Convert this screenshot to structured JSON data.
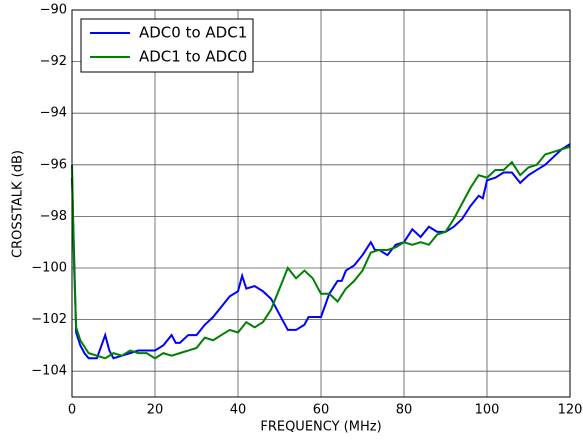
{
  "chart_data": {
    "type": "line",
    "xlabel": "FREQUENCY (MHz)",
    "ylabel": "CROSSTALK (dB)",
    "xlim": [
      0,
      120
    ],
    "xticks": [
      0,
      20,
      40,
      60,
      80,
      100,
      120
    ],
    "ylim": [
      -105,
      -90
    ],
    "yticks": [
      {
        "value": -104,
        "label": "−104"
      },
      {
        "value": -102,
        "label": "−102"
      },
      {
        "value": -100,
        "label": "−100"
      },
      {
        "value": -98,
        "label": "−98"
      },
      {
        "value": -96,
        "label": "−96"
      },
      {
        "value": -94,
        "label": "−94"
      },
      {
        "value": -92,
        "label": "−92"
      },
      {
        "value": -90,
        "label": "−90"
      }
    ],
    "grid": true,
    "legend": "upper left",
    "series": [
      {
        "name": "ADC0 to ADC1",
        "color": "#0000ff",
        "x": [
          0,
          1,
          2,
          3,
          4,
          6,
          8,
          9,
          10,
          12,
          14,
          16,
          18,
          20,
          22,
          24,
          25,
          26,
          28,
          30,
          32,
          34,
          36,
          38,
          40,
          41,
          42,
          44,
          46,
          48,
          50,
          52,
          54,
          56,
          57,
          60,
          62,
          64,
          65,
          66,
          68,
          70,
          72,
          73,
          74,
          76,
          78,
          80,
          82,
          84,
          86,
          88,
          90,
          92,
          94,
          96,
          98,
          99,
          100,
          102,
          104,
          106,
          108,
          110,
          112,
          114,
          116,
          118,
          120
        ],
        "values": [
          -96.5,
          -102.5,
          -103,
          -103.3,
          -103.5,
          -103.5,
          -102.6,
          -103.2,
          -103.5,
          -103.4,
          -103.3,
          -103.2,
          -103.2,
          -103.2,
          -103,
          -102.6,
          -102.9,
          -102.9,
          -102.6,
          -102.6,
          -102.2,
          -101.9,
          -101.5,
          -101.1,
          -100.9,
          -100.3,
          -100.8,
          -100.7,
          -100.9,
          -101.2,
          -101.8,
          -102.4,
          -102.4,
          -102.2,
          -101.9,
          -101.9,
          -101,
          -100.5,
          -100.5,
          -100.1,
          -99.9,
          -99.5,
          -99,
          -99.3,
          -99.3,
          -99.5,
          -99.1,
          -99,
          -98.5,
          -98.8,
          -98.4,
          -98.6,
          -98.6,
          -98.4,
          -98.1,
          -97.6,
          -97.2,
          -97.3,
          -96.6,
          -96.5,
          -96.3,
          -96.3,
          -96.7,
          -96.4,
          -96.2,
          -96,
          -95.7,
          -95.4,
          -95.2
        ]
      },
      {
        "name": "ADC1 to ADC0",
        "color": "#008000",
        "x": [
          0,
          0.5,
          1,
          2,
          4,
          6,
          8,
          10,
          12,
          14,
          16,
          18,
          20,
          22,
          24,
          26,
          28,
          30,
          32,
          34,
          36,
          38,
          40,
          42,
          44,
          46,
          48,
          50,
          52,
          54,
          56,
          58,
          60,
          62,
          64,
          66,
          68,
          70,
          72,
          74,
          76,
          78,
          80,
          82,
          84,
          86,
          88,
          90,
          92,
          94,
          96,
          98,
          100,
          102,
          104,
          106,
          108,
          110,
          112,
          114,
          116,
          118,
          120
        ],
        "values": [
          -96,
          -100,
          -102.3,
          -102.8,
          -103.3,
          -103.4,
          -103.5,
          -103.3,
          -103.4,
          -103.2,
          -103.3,
          -103.3,
          -103.5,
          -103.3,
          -103.4,
          -103.3,
          -103.2,
          -103.1,
          -102.7,
          -102.8,
          -102.6,
          -102.4,
          -102.5,
          -102.1,
          -102.3,
          -102.1,
          -101.6,
          -100.8,
          -100,
          -100.4,
          -100.1,
          -100.4,
          -101,
          -101,
          -101.3,
          -100.8,
          -100.5,
          -100.1,
          -99.4,
          -99.3,
          -99.3,
          -99.2,
          -99,
          -99.1,
          -99,
          -99.1,
          -98.7,
          -98.6,
          -98.1,
          -97.5,
          -96.9,
          -96.4,
          -96.5,
          -96.2,
          -96.2,
          -95.9,
          -96.4,
          -96.1,
          -96,
          -95.6,
          -95.5,
          -95.4,
          -95.3
        ]
      }
    ]
  }
}
